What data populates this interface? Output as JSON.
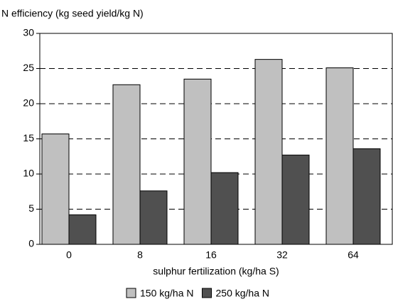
{
  "chart_data": {
    "type": "bar",
    "title": "N efficiency (kg seed yield/kg N)",
    "x_label": "sulphur fertilization (kg/ha S)",
    "categories": [
      "0",
      "8",
      "16",
      "32",
      "64"
    ],
    "series": [
      {
        "name": "150 kg/ha N",
        "color": "#c0c0c0",
        "values": [
          15.7,
          22.7,
          23.5,
          26.3,
          25.1
        ]
      },
      {
        "name": "250 kg/ha N",
        "color": "#505050",
        "values": [
          4.2,
          7.6,
          10.2,
          12.7,
          13.6
        ]
      }
    ],
    "ylim": [
      0,
      30
    ],
    "yticks": [
      0,
      5,
      10,
      15,
      20,
      25,
      30
    ],
    "grid": true,
    "legend": "bottom"
  }
}
